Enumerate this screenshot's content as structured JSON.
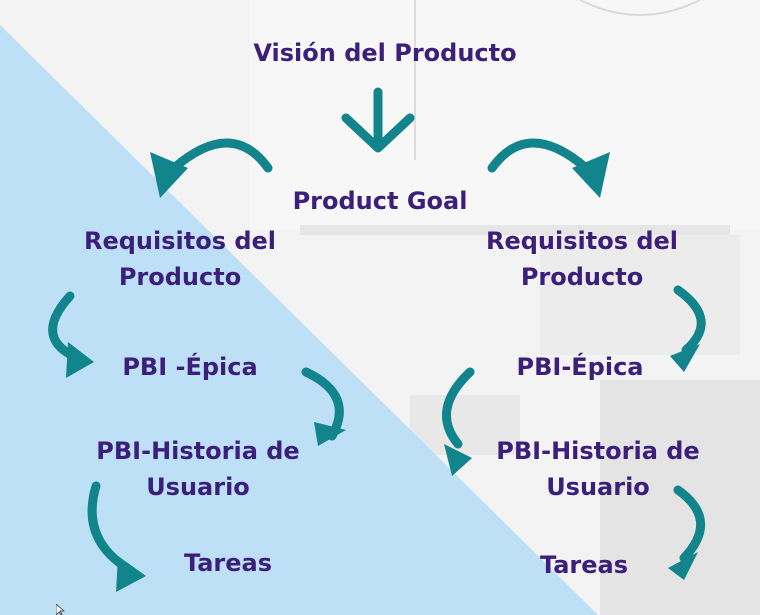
{
  "diagram": {
    "title": "Visión del Producto",
    "goal": "Product Goal",
    "left": {
      "requisitos_line1": "Requisitos del",
      "requisitos_line2": "Producto",
      "pbi_epica": "PBI -Épica",
      "historia_line1": "PBI-Historia de",
      "historia_line2": "Usuario",
      "tareas": "Tareas"
    },
    "right": {
      "requisitos_line1": "Requisitos del",
      "requisitos_line2": "Producto",
      "pbi_epica": "PBI-Épica",
      "historia_line1": "PBI-Historia de",
      "historia_line2": "Usuario",
      "tareas": "Tareas"
    }
  },
  "colors": {
    "text": "#3b1f7a",
    "arrow": "#12848c",
    "panel_blue": "#bde0f7",
    "background": "#f2f2f2"
  }
}
